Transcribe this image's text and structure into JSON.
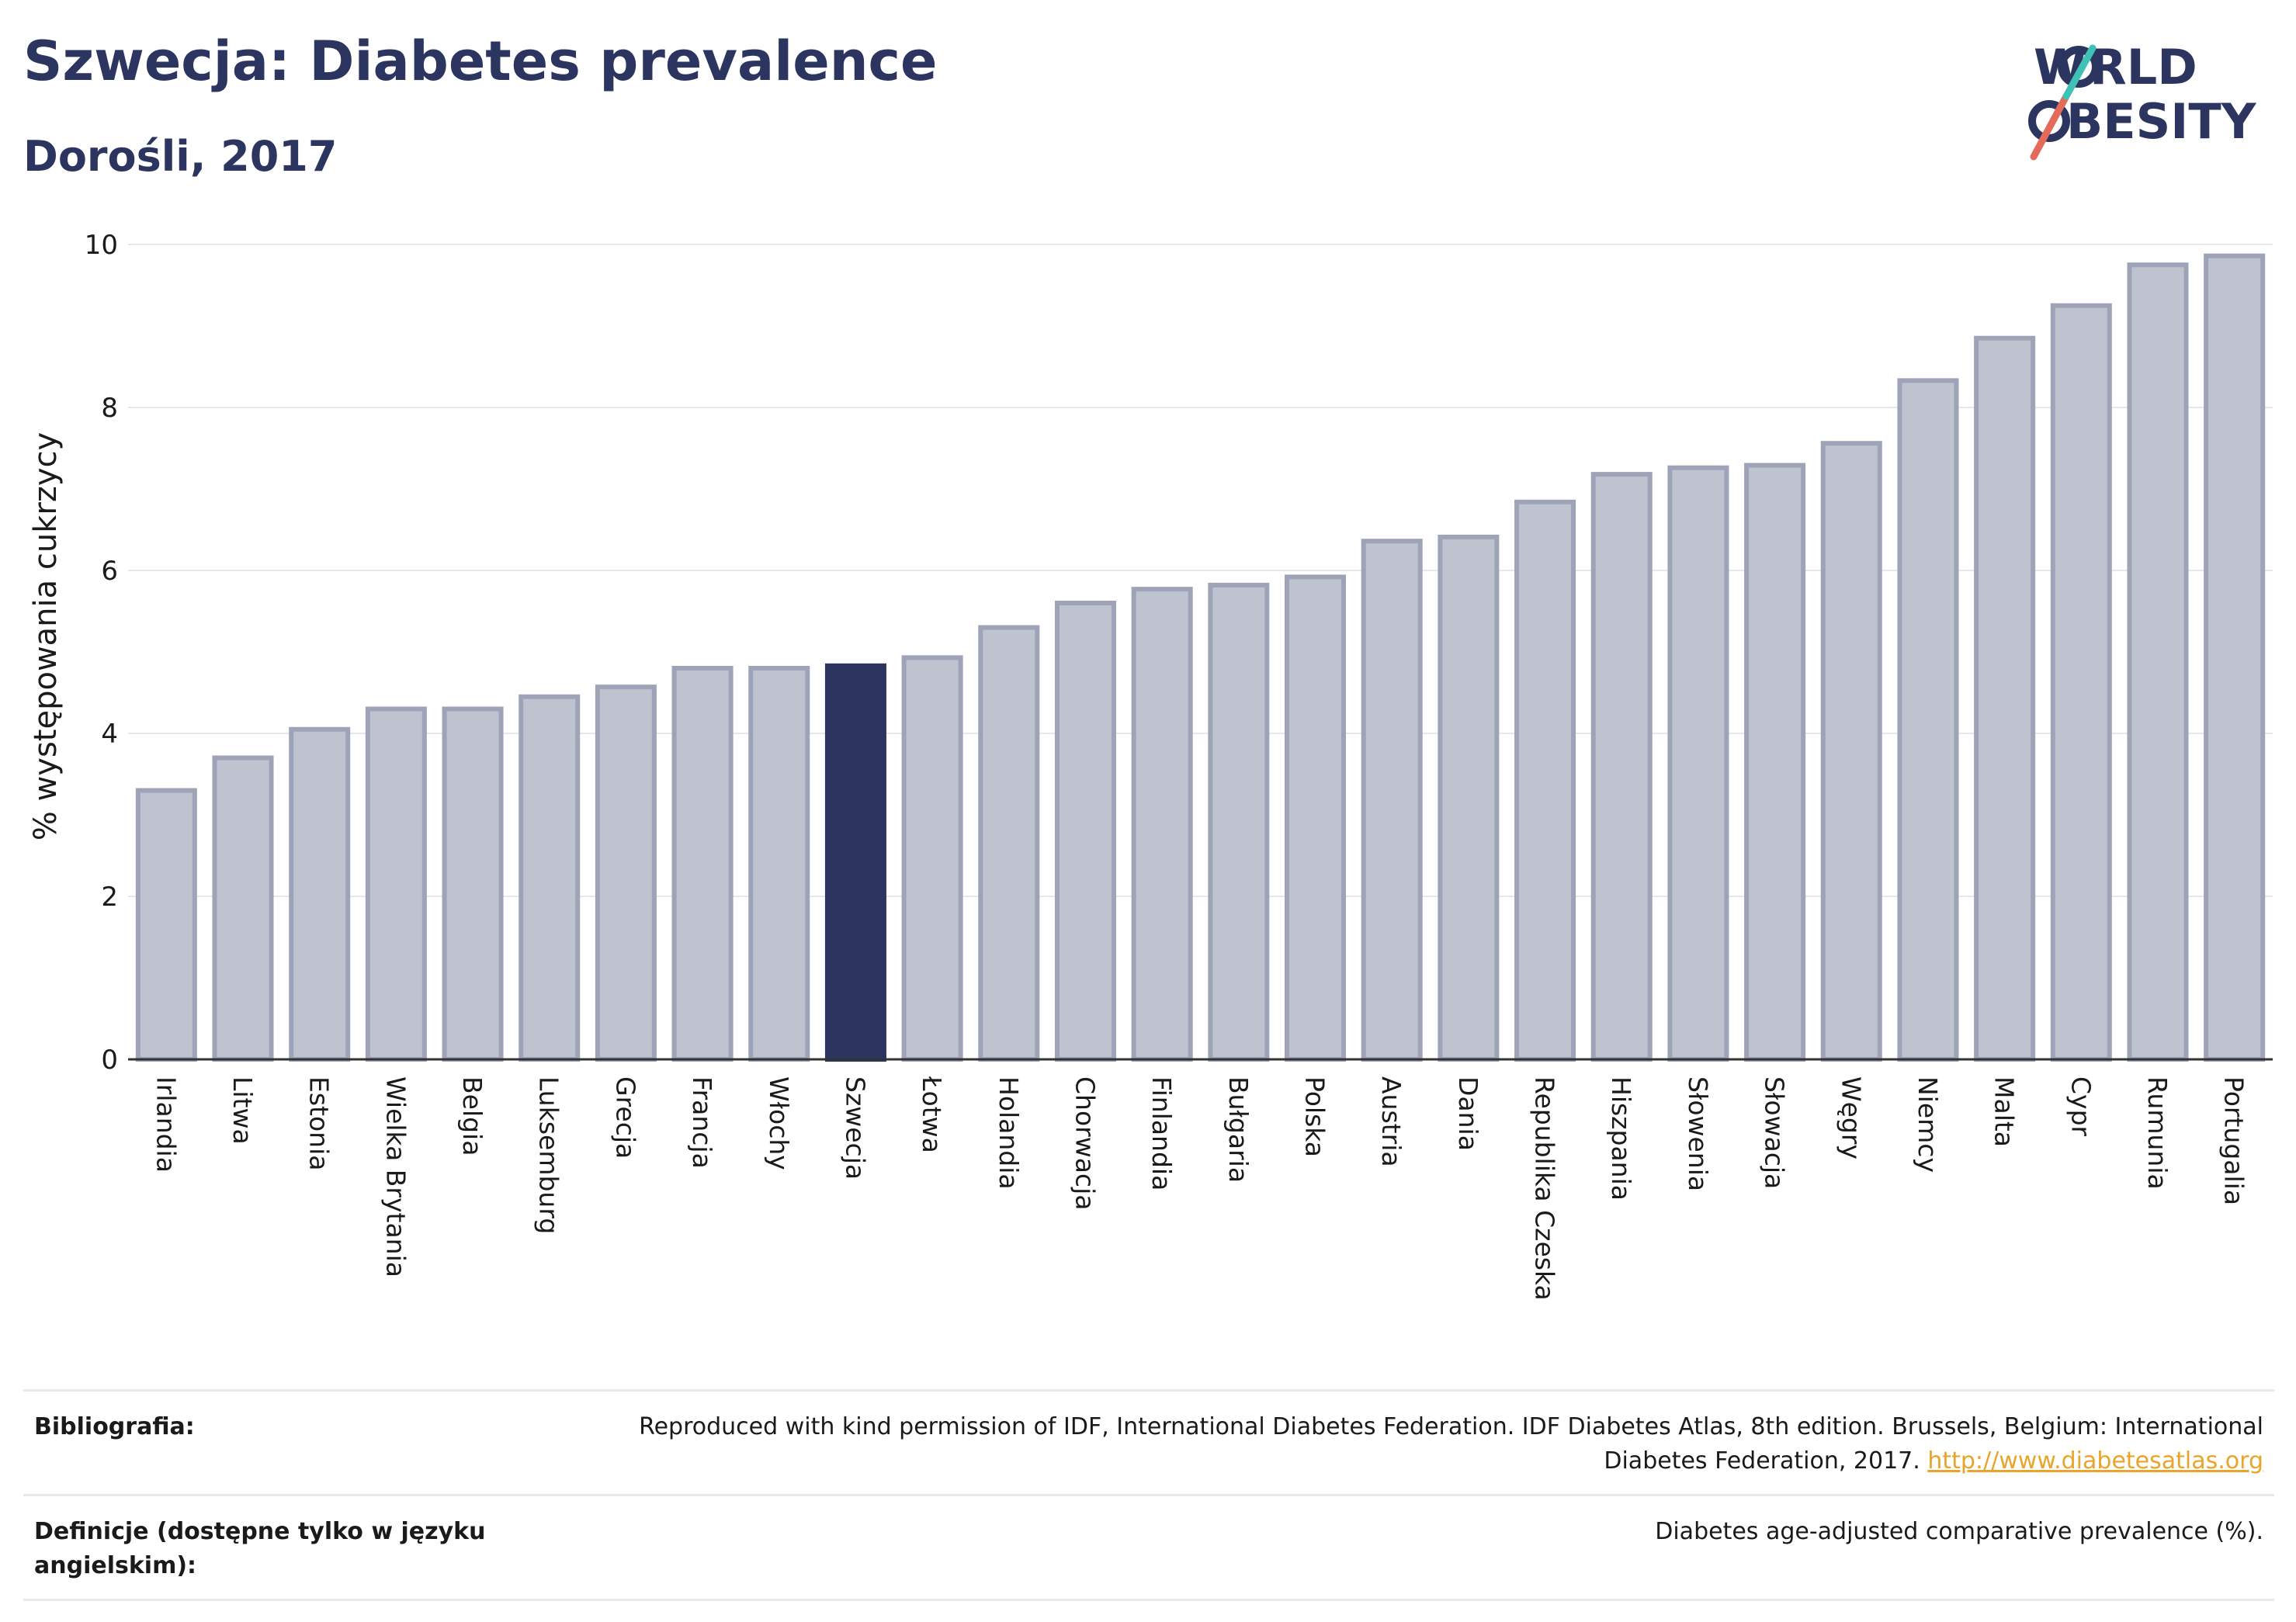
{
  "title": "Szwecja: Diabetes prevalence",
  "subtitle": "Dorośli, 2017",
  "logo": {
    "line1": "WORLD",
    "line2": "OBESITY"
  },
  "colors": {
    "highlight": "#2b3560",
    "bar": "#bfc2cf",
    "bar_stroke": "#9ea3b8",
    "title": "#2b3560"
  },
  "chart_data": {
    "type": "bar",
    "ylabel": "% występowania cukrzycy",
    "ylim": [
      0,
      10
    ],
    "yticks": [
      0,
      2,
      4,
      6,
      8,
      10
    ],
    "grid": true,
    "highlight": "Szwecja",
    "categories": [
      "Irlandia",
      "Litwa",
      "Estonia",
      "Wielka Brytania",
      "Belgia",
      "Luksemburg",
      "Grecja",
      "Francja",
      "Włochy",
      "Szwecja",
      "Łotwa",
      "Holandia",
      "Chorwacja",
      "Finlandia",
      "Bułgaria",
      "Polska",
      "Austria",
      "Dania",
      "Republika Czeska",
      "Hiszpania",
      "Słowenia",
      "Słowacja",
      "Węgry",
      "Niemcy",
      "Malta",
      "Cypr",
      "Rumunia",
      "Portugalia"
    ],
    "values": [
      3.3,
      3.7,
      4.05,
      4.3,
      4.3,
      4.45,
      4.57,
      4.8,
      4.8,
      4.83,
      4.93,
      5.3,
      5.6,
      5.77,
      5.82,
      5.92,
      6.36,
      6.41,
      6.84,
      7.18,
      7.26,
      7.29,
      7.56,
      8.33,
      8.85,
      9.25,
      9.75,
      9.86
    ]
  },
  "footer": {
    "bibliography_label": "Bibliografia:",
    "bibliography_text": "Reproduced with kind permission of IDF, International Diabetes Federation. IDF Diabetes Atlas, 8th edition. Brussels, Belgium: International Diabetes Federation, 2017.",
    "bibliography_link": "http://www.diabetesatlas.org",
    "definitions_label": "Definicje (dostępne tylko w języku angielskim):",
    "definitions_text": "Diabetes age-adjusted comparative prevalence (%)."
  }
}
